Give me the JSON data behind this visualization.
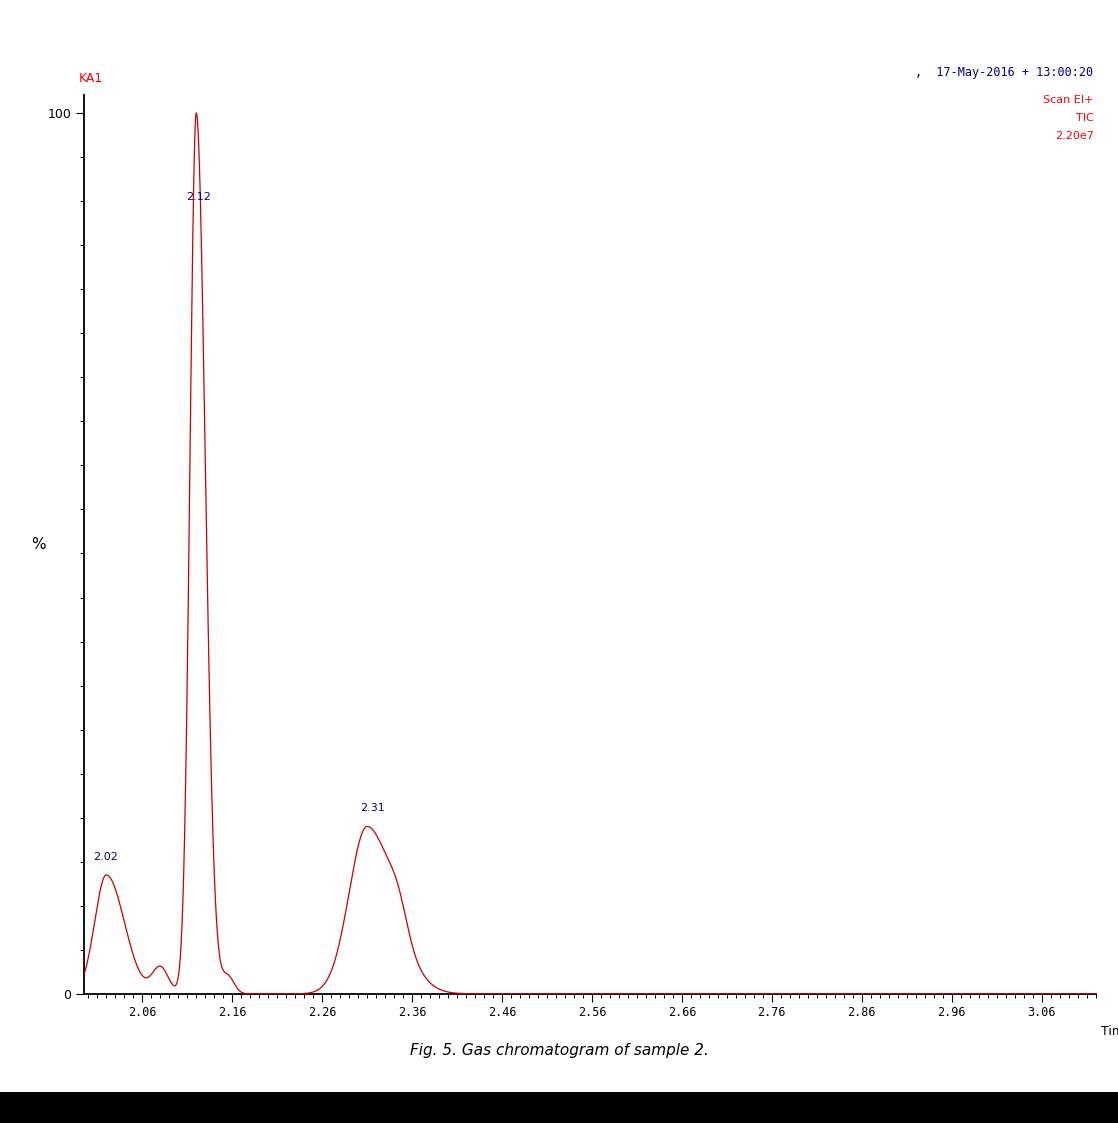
{
  "title_caption": "Fig. 5. Gas chromatogram of sample 2.",
  "top_right_text_line1": ",  17-May-2016 + 13:00:20",
  "top_right_text_line2": "Scan EI+",
  "top_right_text_line3": "TIC",
  "top_right_text_line4": "2.20e7",
  "top_left_label": "KA1",
  "ylabel": "%",
  "xlabel": "Time",
  "xmin": 1.995,
  "xmax": 3.12,
  "ymin": 0,
  "ymax": 100,
  "xticks": [
    2.06,
    2.16,
    2.26,
    2.36,
    2.46,
    2.56,
    2.66,
    2.76,
    2.86,
    2.96,
    3.06
  ],
  "line_color": "#cc0000",
  "peak1_x": 2.02,
  "peak1_y": 13.5,
  "peak2_x": 2.12,
  "peak2_y": 100.0,
  "peak3_x": 2.31,
  "peak3_y": 19.0,
  "background_color": "#ffffff"
}
